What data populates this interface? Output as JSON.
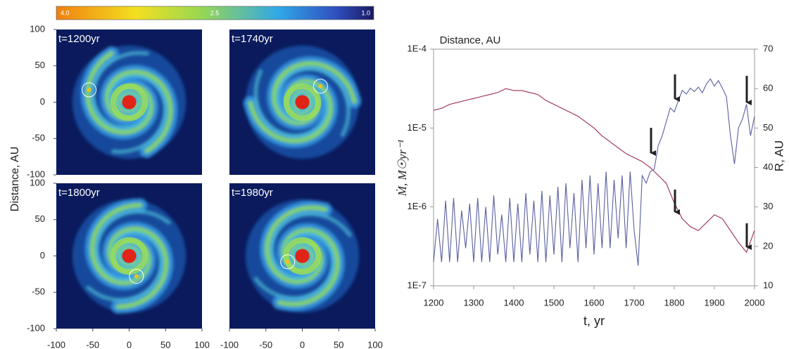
{
  "colorbar": {
    "labels": [
      "4.0",
      "2.5",
      "1.0"
    ]
  },
  "panels": {
    "ylabel": "Distance, AU",
    "lim": [
      -100,
      100
    ],
    "xticks": [
      -100,
      -50,
      0,
      50,
      100
    ],
    "yticks": [
      100,
      50,
      0,
      -50,
      -100
    ],
    "items": [
      {
        "label": "t=1200yr"
      },
      {
        "label": "t=1740yr"
      },
      {
        "label": "t=1800yr"
      },
      {
        "label": "t=1980yr"
      }
    ]
  },
  "chart_data": {
    "type": "line",
    "title": "Distance, AU",
    "xlabel": "t,  yr",
    "ylabel": "Ṁ, M☉yr⁻¹",
    "y2label": "R, AU",
    "xlim": [
      1200,
      2000
    ],
    "xticks": [
      1200,
      1300,
      1400,
      1500,
      1600,
      1700,
      1800,
      1900,
      2000
    ],
    "ylim": [
      1e-07,
      0.0001
    ],
    "yscale": "log",
    "yticks": [
      {
        "value": 1e-07,
        "label": "1E-7"
      },
      {
        "value": 1e-06,
        "label": "1E-6"
      },
      {
        "value": 1e-05,
        "label": "1E-5"
      },
      {
        "value": 0.0001,
        "label": "1E-4"
      }
    ],
    "y2lim": [
      10,
      70
    ],
    "y2ticks": [
      10,
      20,
      30,
      40,
      50,
      60,
      70
    ],
    "series": [
      {
        "color": "#9b2d4a",
        "axis": "y2",
        "x": [
          1200,
          1220,
          1240,
          1260,
          1280,
          1300,
          1320,
          1340,
          1360,
          1380,
          1400,
          1420,
          1440,
          1460,
          1480,
          1500,
          1520,
          1540,
          1560,
          1580,
          1600,
          1620,
          1640,
          1660,
          1680,
          1700,
          1720,
          1740,
          1760,
          1780,
          1800,
          1820,
          1840,
          1860,
          1880,
          1900,
          1920,
          1940,
          1960,
          1980,
          2000
        ],
        "values": [
          54.5,
          55,
          56,
          56.5,
          57,
          57.5,
          58,
          58.5,
          59,
          60,
          59.5,
          59.5,
          59,
          58.5,
          57,
          56,
          55,
          54,
          53,
          51.5,
          50,
          48,
          46.5,
          45,
          43.5,
          42.5,
          41.5,
          40,
          38,
          36,
          31,
          27,
          25,
          24,
          26,
          28,
          27,
          24,
          21,
          18.5,
          24
        ]
      },
      {
        "color": "#5a5fa0",
        "x": [
          1200,
          1210,
          1220,
          1230,
          1240,
          1250,
          1260,
          1270,
          1280,
          1290,
          1300,
          1310,
          1320,
          1330,
          1340,
          1350,
          1360,
          1370,
          1380,
          1390,
          1400,
          1410,
          1420,
          1430,
          1440,
          1450,
          1460,
          1470,
          1480,
          1490,
          1500,
          1510,
          1520,
          1530,
          1540,
          1550,
          1560,
          1570,
          1580,
          1590,
          1600,
          1610,
          1620,
          1630,
          1640,
          1650,
          1660,
          1670,
          1680,
          1690,
          1700,
          1710,
          1720,
          1730,
          1740,
          1750,
          1760,
          1770,
          1780,
          1790,
          1800,
          1810,
          1820,
          1830,
          1840,
          1850,
          1860,
          1870,
          1880,
          1890,
          1900,
          1910,
          1920,
          1930,
          1940,
          1950,
          1960,
          1970,
          1980,
          1990,
          2000
        ],
        "values": [
          2e-07,
          7e-07,
          2e-07,
          1.2e-06,
          2e-07,
          1.3e-06,
          2e-07,
          9e-07,
          3e-07,
          1.1e-06,
          2e-07,
          1.3e-06,
          2e-07,
          1e-06,
          2e-07,
          1.4e-06,
          2.5e-07,
          8e-07,
          2e-07,
          1.3e-06,
          2e-07,
          1.1e-06,
          2e-07,
          1.5e-06,
          2.5e-07,
          1.2e-06,
          2e-07,
          1.6e-06,
          2e-07,
          1.4e-06,
          2.5e-07,
          1.8e-06,
          2e-07,
          2e-06,
          3e-07,
          1.5e-06,
          2e-07,
          2.2e-06,
          3e-07,
          2.5e-06,
          2.5e-07,
          2e-06,
          3e-07,
          2.8e-06,
          3e-07,
          2.2e-06,
          4e-07,
          2.5e-06,
          3e-07,
          2.8e-06,
          5e-07,
          1.8e-07,
          2.5e-06,
          2e-06,
          2.8e-06,
          3e-06,
          6e-06,
          8e-06,
          1.2e-05,
          1.8e-05,
          1.6e-05,
          2.2e-05,
          3e-05,
          2.7e-05,
          3.2e-05,
          2.9e-05,
          3.3e-05,
          2.8e-05,
          3.6e-05,
          4.2e-05,
          3.4e-05,
          4e-05,
          3.2e-05,
          2.5e-05,
          8e-06,
          3.5e-06,
          1e-05,
          1.3e-05,
          2e-05,
          8e-06,
          1.4e-05
        ]
      }
    ]
  }
}
